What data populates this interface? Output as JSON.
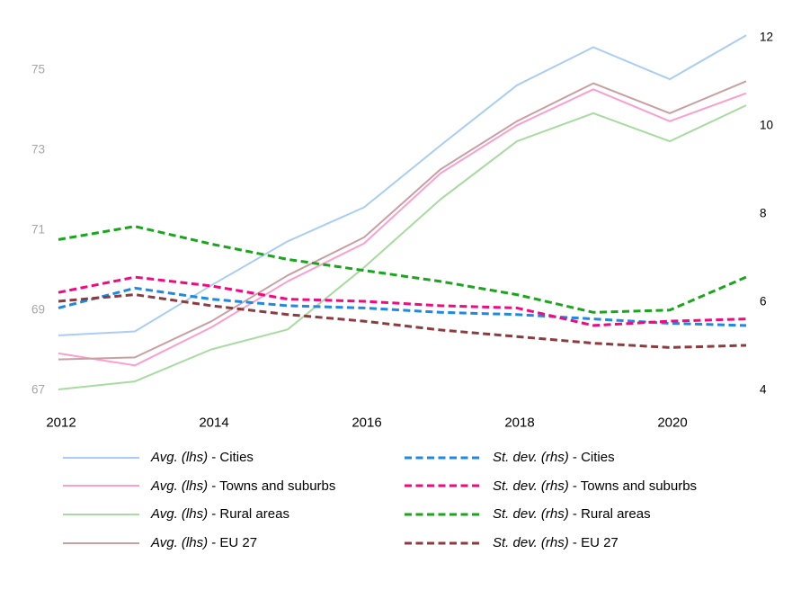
{
  "chart_data": {
    "type": "line",
    "x": [
      2012,
      2013,
      2014,
      2015,
      2016,
      2017,
      2018,
      2019,
      2020,
      2021
    ],
    "x_tick_labels": [
      "2012",
      "2014",
      "2016",
      "2018",
      "2020"
    ],
    "x_tick_years": [
      2012,
      2014,
      2016,
      2018,
      2020
    ],
    "title": "",
    "xlabel": "",
    "ylabel_left": "",
    "ylabel_right": "",
    "grid": false,
    "legend_position": "bottom-two-columns",
    "left_axis": {
      "ticks": [
        75,
        73,
        71,
        69,
        67
      ],
      "range": [
        66.5,
        76.2
      ],
      "label_color": "#a6a6a6"
    },
    "right_axis": {
      "ticks": [
        12,
        10,
        8,
        6,
        4
      ],
      "range": [
        3.3,
        13.0
      ],
      "label_color": "#000000"
    },
    "series": [
      {
        "name": "avg-lhs-cities",
        "legend_italic": "Avg. (lhs)",
        "legend_rest": " - Cities",
        "axis": "lhs",
        "style": "solid",
        "color": "#a9cdf3",
        "values": [
          68.35,
          68.45,
          69.6,
          70.7,
          71.55,
          73.1,
          74.6,
          75.55,
          74.75,
          75.85
        ]
      },
      {
        "name": "avg-lhs-towns-and-suburbs",
        "legend_italic": "Avg. (lhs)",
        "legend_rest": " - Towns and suburbs",
        "axis": "lhs",
        "style": "solid",
        "color": "#fa9fce",
        "values": [
          67.9,
          67.6,
          68.55,
          69.7,
          70.65,
          72.4,
          73.6,
          74.5,
          73.7,
          74.4
        ]
      },
      {
        "name": "avg-lhs-rural-areas",
        "legend_italic": "Avg. (lhs)",
        "legend_rest": " - Rural areas",
        "axis": "lhs",
        "style": "solid",
        "color": "#a7dba0",
        "values": [
          67.0,
          67.2,
          68.0,
          68.5,
          70.05,
          71.75,
          73.2,
          73.9,
          73.2,
          74.1
        ]
      },
      {
        "name": "avg-lhs-eu-27",
        "legend_italic": "Avg. (lhs)",
        "legend_rest": " - EU 27",
        "axis": "lhs",
        "style": "solid",
        "color": "#c8a0a1",
        "values": [
          67.75,
          67.8,
          68.7,
          69.85,
          70.8,
          72.5,
          73.7,
          74.65,
          73.9,
          74.7
        ]
      },
      {
        "name": "st-dev-rhs-cities",
        "legend_italic": "St. dev. (rhs)",
        "legend_rest": " - Cities",
        "axis": "rhs",
        "style": "dashed",
        "color": "#1e88e5",
        "values": [
          5.85,
          6.3,
          6.05,
          5.9,
          5.85,
          5.75,
          5.7,
          5.6,
          5.5,
          5.45
        ]
      },
      {
        "name": "st-dev-rhs-towns-and-suburbs",
        "legend_italic": "St. dev. (rhs)",
        "legend_rest": " - Towns and suburbs",
        "axis": "rhs",
        "style": "dashed",
        "color": "#f2087f",
        "values": [
          6.2,
          6.55,
          6.35,
          6.05,
          6.0,
          5.9,
          5.85,
          5.45,
          5.55,
          5.6
        ]
      },
      {
        "name": "st-dev-rhs-rural-areas",
        "legend_italic": "St. dev. (rhs)",
        "legend_rest": " - Rural areas",
        "axis": "rhs",
        "style": "dashed",
        "color": "#1aa51c",
        "values": [
          7.4,
          7.7,
          7.3,
          6.95,
          6.7,
          6.45,
          6.15,
          5.75,
          5.8,
          6.55
        ]
      },
      {
        "name": "st-dev-rhs-eu-27",
        "legend_italic": "St. dev. (rhs)",
        "legend_rest": " - EU 27",
        "axis": "rhs",
        "style": "dashed",
        "color": "#8c3c3e",
        "values": [
          6.0,
          6.15,
          5.9,
          5.7,
          5.55,
          5.35,
          5.2,
          5.05,
          4.95,
          5.0
        ]
      }
    ]
  },
  "legend": {
    "left_column_entries": [
      "Avg. (lhs) - Cities",
      "Avg. (lhs) - Towns and suburbs",
      "Avg. (lhs) - Rural areas",
      "Avg. (lhs) - EU 27"
    ],
    "right_column_entries": [
      "St. dev. (rhs) - Cities",
      "St. dev. (rhs) - Towns and suburbs",
      "St. dev. (rhs) - Rural areas",
      "St. dev. (rhs) - EU 27"
    ]
  }
}
